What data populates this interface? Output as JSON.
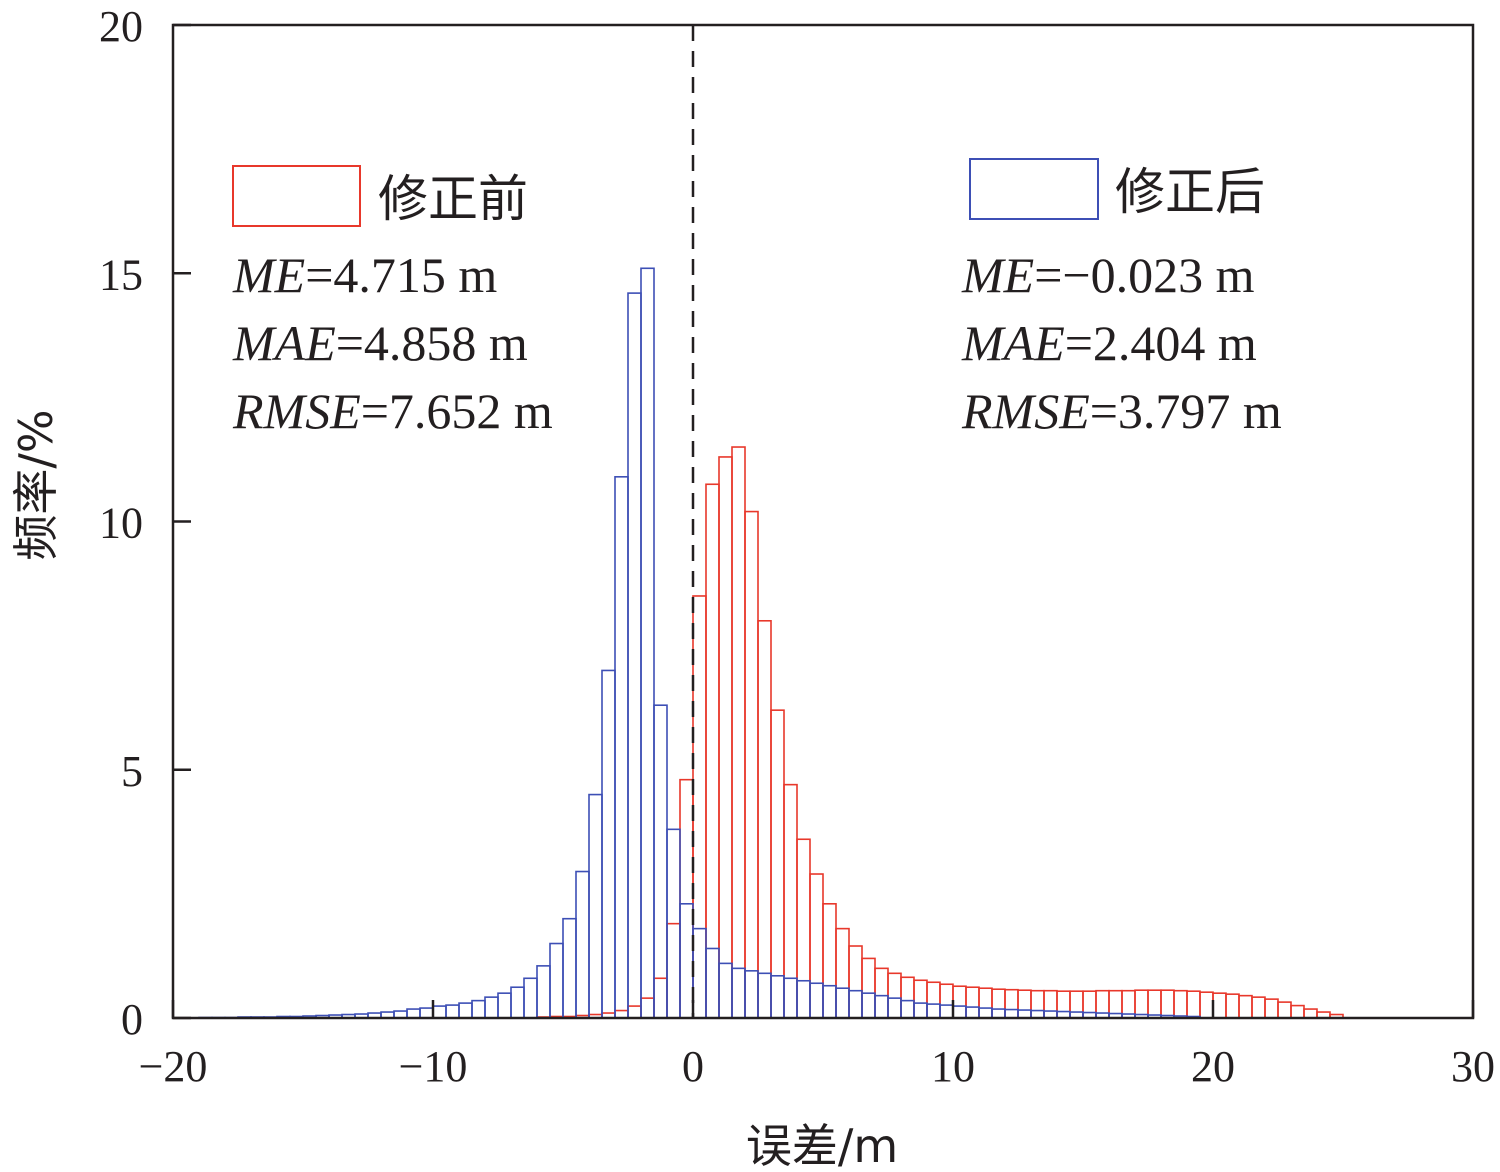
{
  "chart_data": {
    "type": "bar",
    "xlabel": "误差/m",
    "ylabel": "频率/%",
    "xlim": [
      -20,
      30
    ],
    "ylim": [
      0,
      20
    ],
    "xticks": [
      -20,
      -10,
      0,
      10,
      20,
      30
    ],
    "xtick_labels": [
      "−20",
      "−10",
      "0",
      "10",
      "20",
      "30"
    ],
    "yticks": [
      0,
      5,
      10,
      15,
      20
    ],
    "ytick_labels": [
      "0",
      "5",
      "10",
      "15",
      "20"
    ],
    "reference_line_x": 0,
    "grid": false,
    "bin_width": 0.5,
    "series": [
      {
        "name": "修正前",
        "color": "#e8382b",
        "x_start": -6,
        "values": [
          0.02,
          0.03,
          0.03,
          0.05,
          0.07,
          0.1,
          0.15,
          0.24,
          0.4,
          0.8,
          1.9,
          4.8,
          8.5,
          10.75,
          11.3,
          11.5,
          10.2,
          8.0,
          6.2,
          4.7,
          3.6,
          2.9,
          2.3,
          1.8,
          1.45,
          1.2,
          1.0,
          0.9,
          0.82,
          0.76,
          0.72,
          0.68,
          0.64,
          0.62,
          0.6,
          0.58,
          0.57,
          0.56,
          0.55,
          0.55,
          0.54,
          0.54,
          0.54,
          0.55,
          0.55,
          0.55,
          0.56,
          0.56,
          0.56,
          0.55,
          0.54,
          0.52,
          0.5,
          0.48,
          0.45,
          0.42,
          0.38,
          0.32,
          0.25,
          0.18,
          0.12,
          0.07
        ]
      },
      {
        "name": "修正后",
        "color": "#3d4fb5",
        "x_start": -19,
        "values": [
          0.01,
          0.01,
          0.01,
          0.02,
          0.02,
          0.02,
          0.03,
          0.03,
          0.04,
          0.05,
          0.06,
          0.07,
          0.08,
          0.1,
          0.12,
          0.14,
          0.18,
          0.2,
          0.24,
          0.26,
          0.3,
          0.35,
          0.42,
          0.5,
          0.62,
          0.8,
          1.05,
          1.5,
          2.0,
          2.95,
          4.5,
          7.0,
          10.9,
          14.6,
          15.1,
          6.3,
          3.8,
          2.3,
          1.8,
          1.4,
          1.1,
          1.0,
          0.95,
          0.9,
          0.85,
          0.8,
          0.75,
          0.7,
          0.65,
          0.6,
          0.55,
          0.5,
          0.45,
          0.4,
          0.35,
          0.3,
          0.28,
          0.26,
          0.24,
          0.22,
          0.2,
          0.18,
          0.17,
          0.16,
          0.15,
          0.14,
          0.13,
          0.12,
          0.11,
          0.1,
          0.09,
          0.08,
          0.07,
          0.06,
          0.05,
          0.04,
          0.03
        ]
      }
    ],
    "legend": [
      {
        "label": "修正前",
        "color": "#e8382b",
        "stats": [
          {
            "key": "ME",
            "value": "=4.715 m"
          },
          {
            "key": "MAE",
            "value": "=4.858 m"
          },
          {
            "key": "RMSE",
            "value": "=7.652 m"
          }
        ]
      },
      {
        "label": "修正后",
        "color": "#3d4fb5",
        "stats": [
          {
            "key": "ME",
            "value": "=−0.023 m"
          },
          {
            "key": "MAE",
            "value": "=2.404 m"
          },
          {
            "key": "RMSE",
            "value": "=3.797 m"
          }
        ]
      }
    ]
  }
}
